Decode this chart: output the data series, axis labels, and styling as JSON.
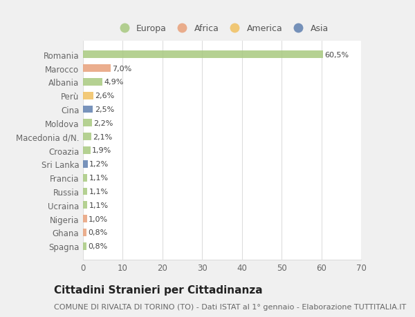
{
  "categories": [
    "Romania",
    "Marocco",
    "Albania",
    "Perù",
    "Cina",
    "Moldova",
    "Macedonia d/N.",
    "Croazia",
    "Sri Lanka",
    "Francia",
    "Russia",
    "Ucraina",
    "Nigeria",
    "Ghana",
    "Spagna"
  ],
  "values": [
    60.5,
    7.0,
    4.9,
    2.6,
    2.5,
    2.2,
    2.1,
    1.9,
    1.2,
    1.1,
    1.1,
    1.1,
    1.0,
    0.8,
    0.8
  ],
  "labels": [
    "60,5%",
    "7,0%",
    "4,9%",
    "2,6%",
    "2,5%",
    "2,2%",
    "2,1%",
    "1,9%",
    "1,2%",
    "1,1%",
    "1,1%",
    "1,1%",
    "1,0%",
    "0,8%",
    "0,8%"
  ],
  "colors": [
    "#a8c97f",
    "#e8a07a",
    "#a8c97f",
    "#f0c060",
    "#6080b0",
    "#a8c97f",
    "#a8c97f",
    "#a8c97f",
    "#6080b0",
    "#a8c97f",
    "#a8c97f",
    "#a8c97f",
    "#e8a07a",
    "#e8a07a",
    "#a8c97f"
  ],
  "legend_labels": [
    "Europa",
    "Africa",
    "America",
    "Asia"
  ],
  "legend_colors": [
    "#a8c97f",
    "#e8a07a",
    "#f0c060",
    "#6080b0"
  ],
  "title": "Cittadini Stranieri per Cittadinanza",
  "subtitle": "COMUNE DI RIVALTA DI TORINO (TO) - Dati ISTAT al 1° gennaio - Elaborazione TUTTITALIA.IT",
  "xlim": [
    0,
    70
  ],
  "xticks": [
    0,
    10,
    20,
    30,
    40,
    50,
    60,
    70
  ],
  "bg_color": "#f0f0f0",
  "plot_bg_color": "#ffffff",
  "grid_color": "#dddddd",
  "label_fontsize": 8,
  "ytick_fontsize": 8.5,
  "xtick_fontsize": 8.5,
  "title_fontsize": 11,
  "subtitle_fontsize": 8,
  "legend_fontsize": 9
}
